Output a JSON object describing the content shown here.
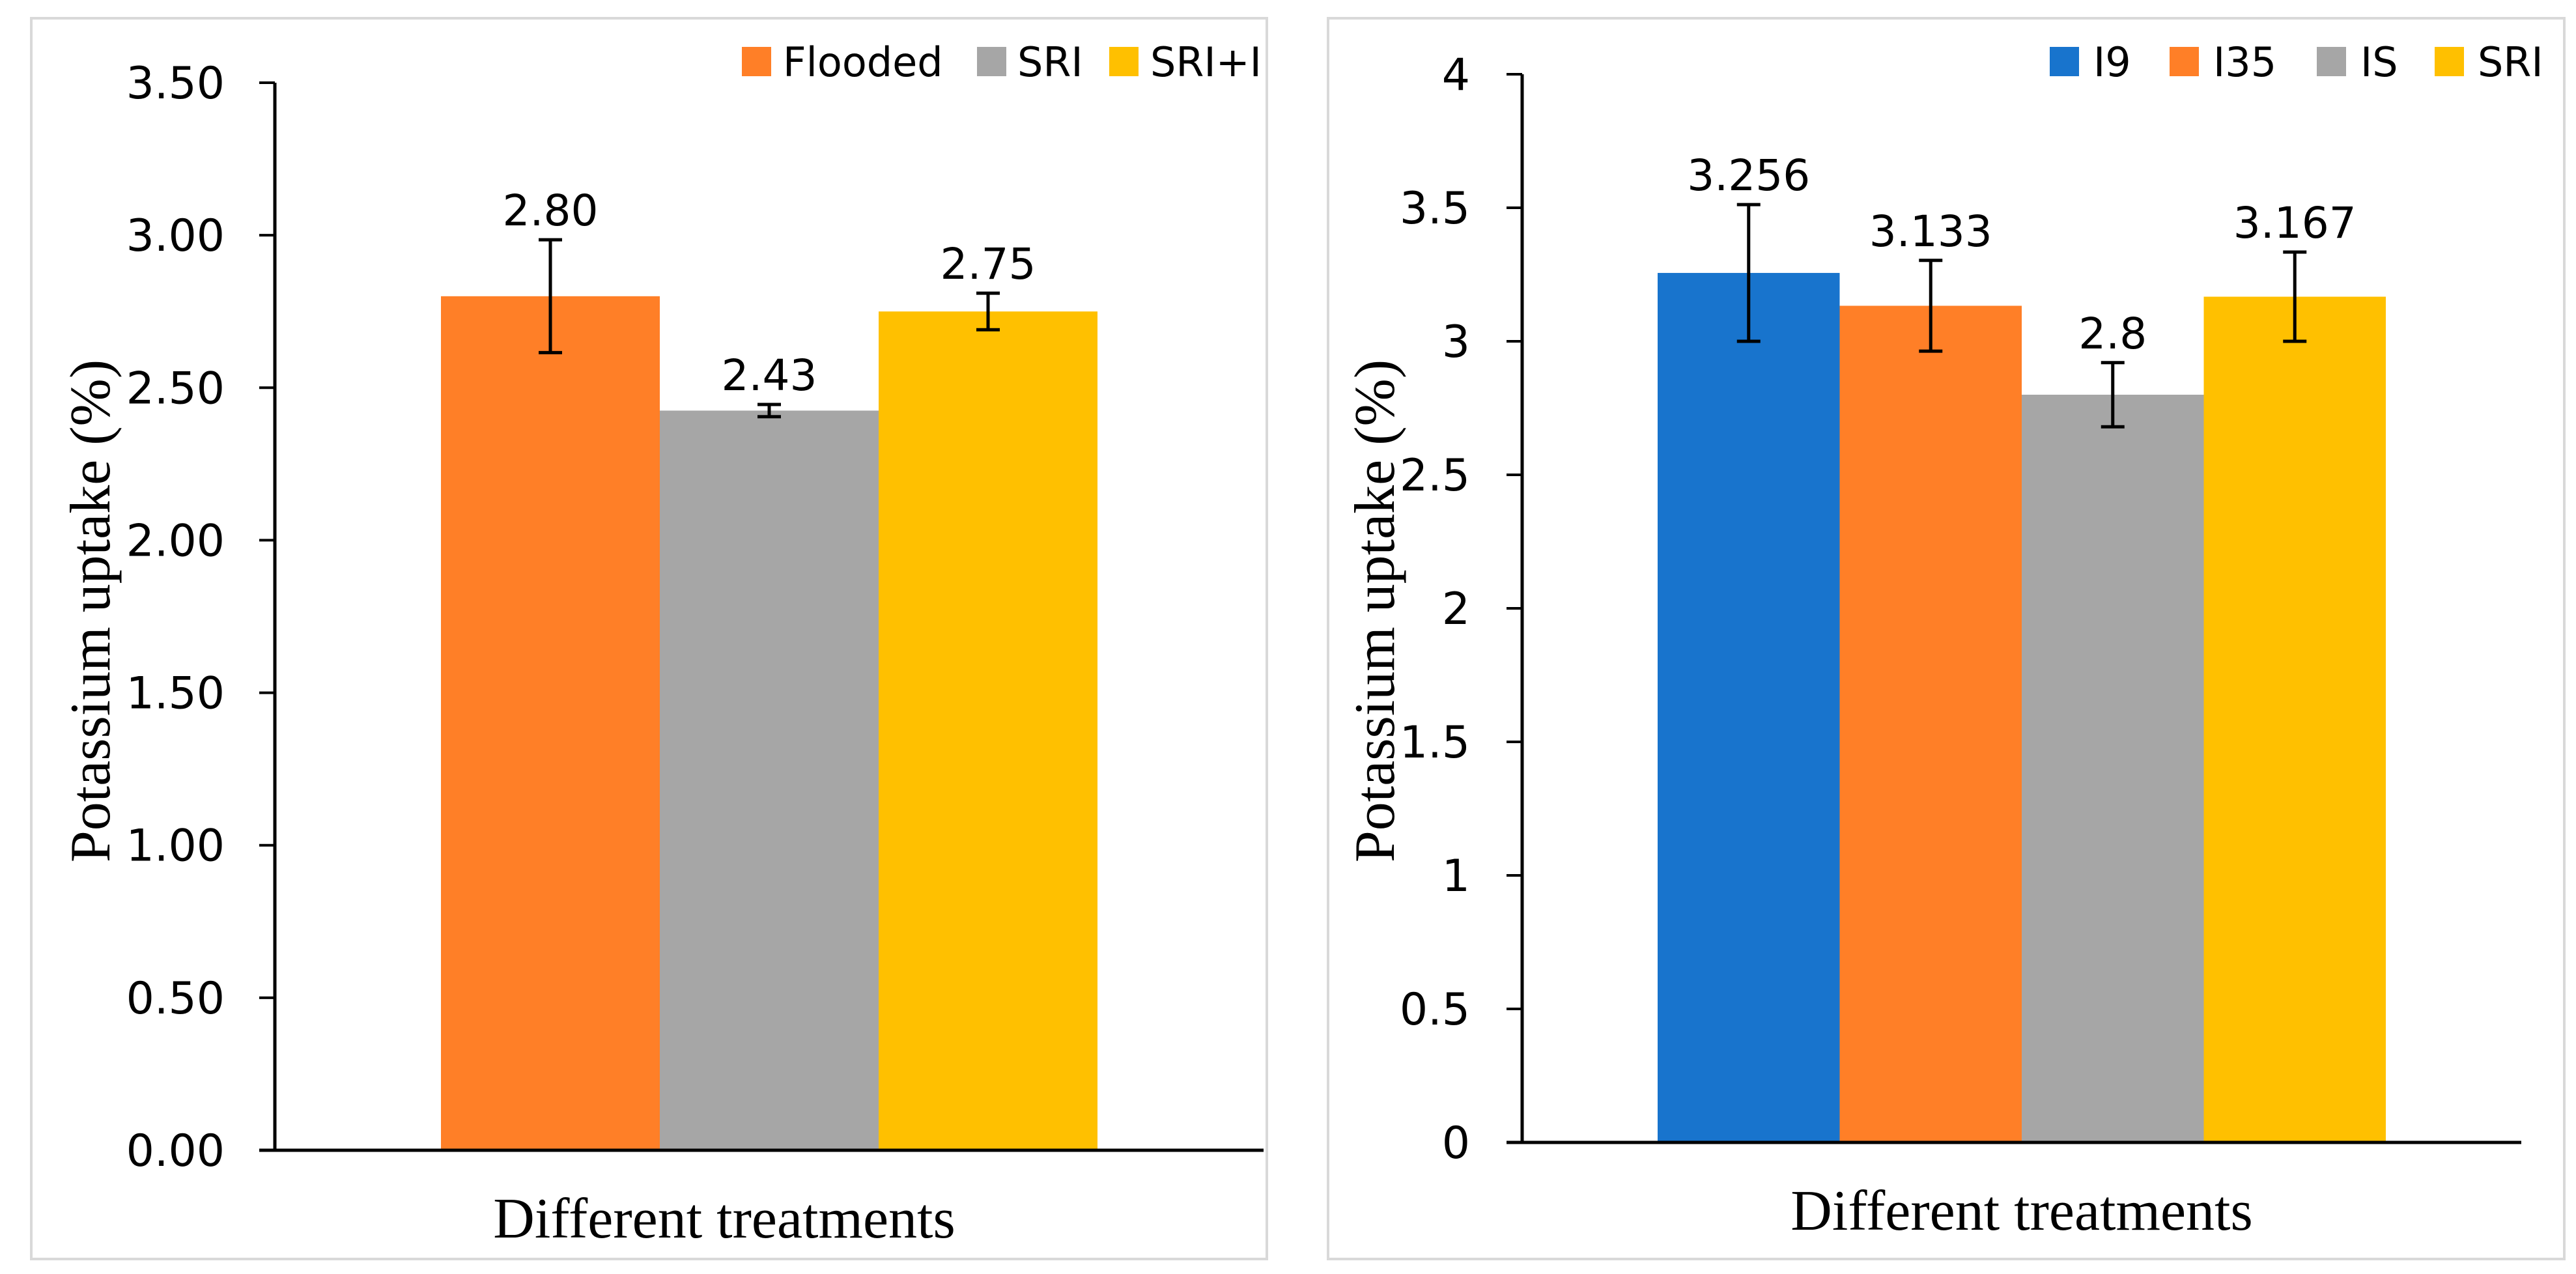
{
  "chart_data": [
    {
      "type": "bar",
      "title": "",
      "xlabel": "Different treatments",
      "ylabel": "Potassium uptake (%)",
      "ylim": [
        0,
        3.5
      ],
      "yticks": [
        "0.00",
        "0.50",
        "1.00",
        "1.50",
        "2.00",
        "2.50",
        "3.00",
        "3.50"
      ],
      "ytick_values": [
        0,
        0.5,
        1,
        1.5,
        2,
        2.5,
        3,
        3.5
      ],
      "legend_position": "top-right",
      "grid": false,
      "series": [
        {
          "name": "Flooded",
          "value": 2.8,
          "label": "2.80",
          "error": 0.185,
          "color": "#FF7F27"
        },
        {
          "name": "SRI",
          "value": 2.425,
          "label": "2.43",
          "error": 0.02,
          "color": "#A6A6A6"
        },
        {
          "name": "SRI+I",
          "value": 2.75,
          "label": "2.75",
          "error": 0.06,
          "color": "#FFC000"
        }
      ]
    },
    {
      "type": "bar",
      "title": "",
      "xlabel": "Different treatments",
      "ylabel": "Potassium uptake (%)",
      "ylim": [
        0,
        4
      ],
      "yticks": [
        "0",
        "0.5",
        "1",
        "1.5",
        "2",
        "2.5",
        "3",
        "3.5",
        "4"
      ],
      "ytick_values": [
        0,
        0.5,
        1,
        1.5,
        2,
        2.5,
        3,
        3.5,
        4
      ],
      "legend_position": "top-right",
      "grid": false,
      "series": [
        {
          "name": "I9",
          "value": 3.256,
          "label": "3.256",
          "error": 0.256,
          "color": "#1874CD"
        },
        {
          "name": "I35",
          "value": 3.133,
          "label": "3.133",
          "error": 0.17,
          "color": "#FF7F27"
        },
        {
          "name": "IS",
          "value": 2.8,
          "label": "2.8",
          "error": 0.12,
          "color": "#A6A6A6"
        },
        {
          "name": "SRI",
          "value": 3.167,
          "label": "3.167",
          "error": 0.167,
          "color": "#FFC000"
        }
      ]
    }
  ]
}
